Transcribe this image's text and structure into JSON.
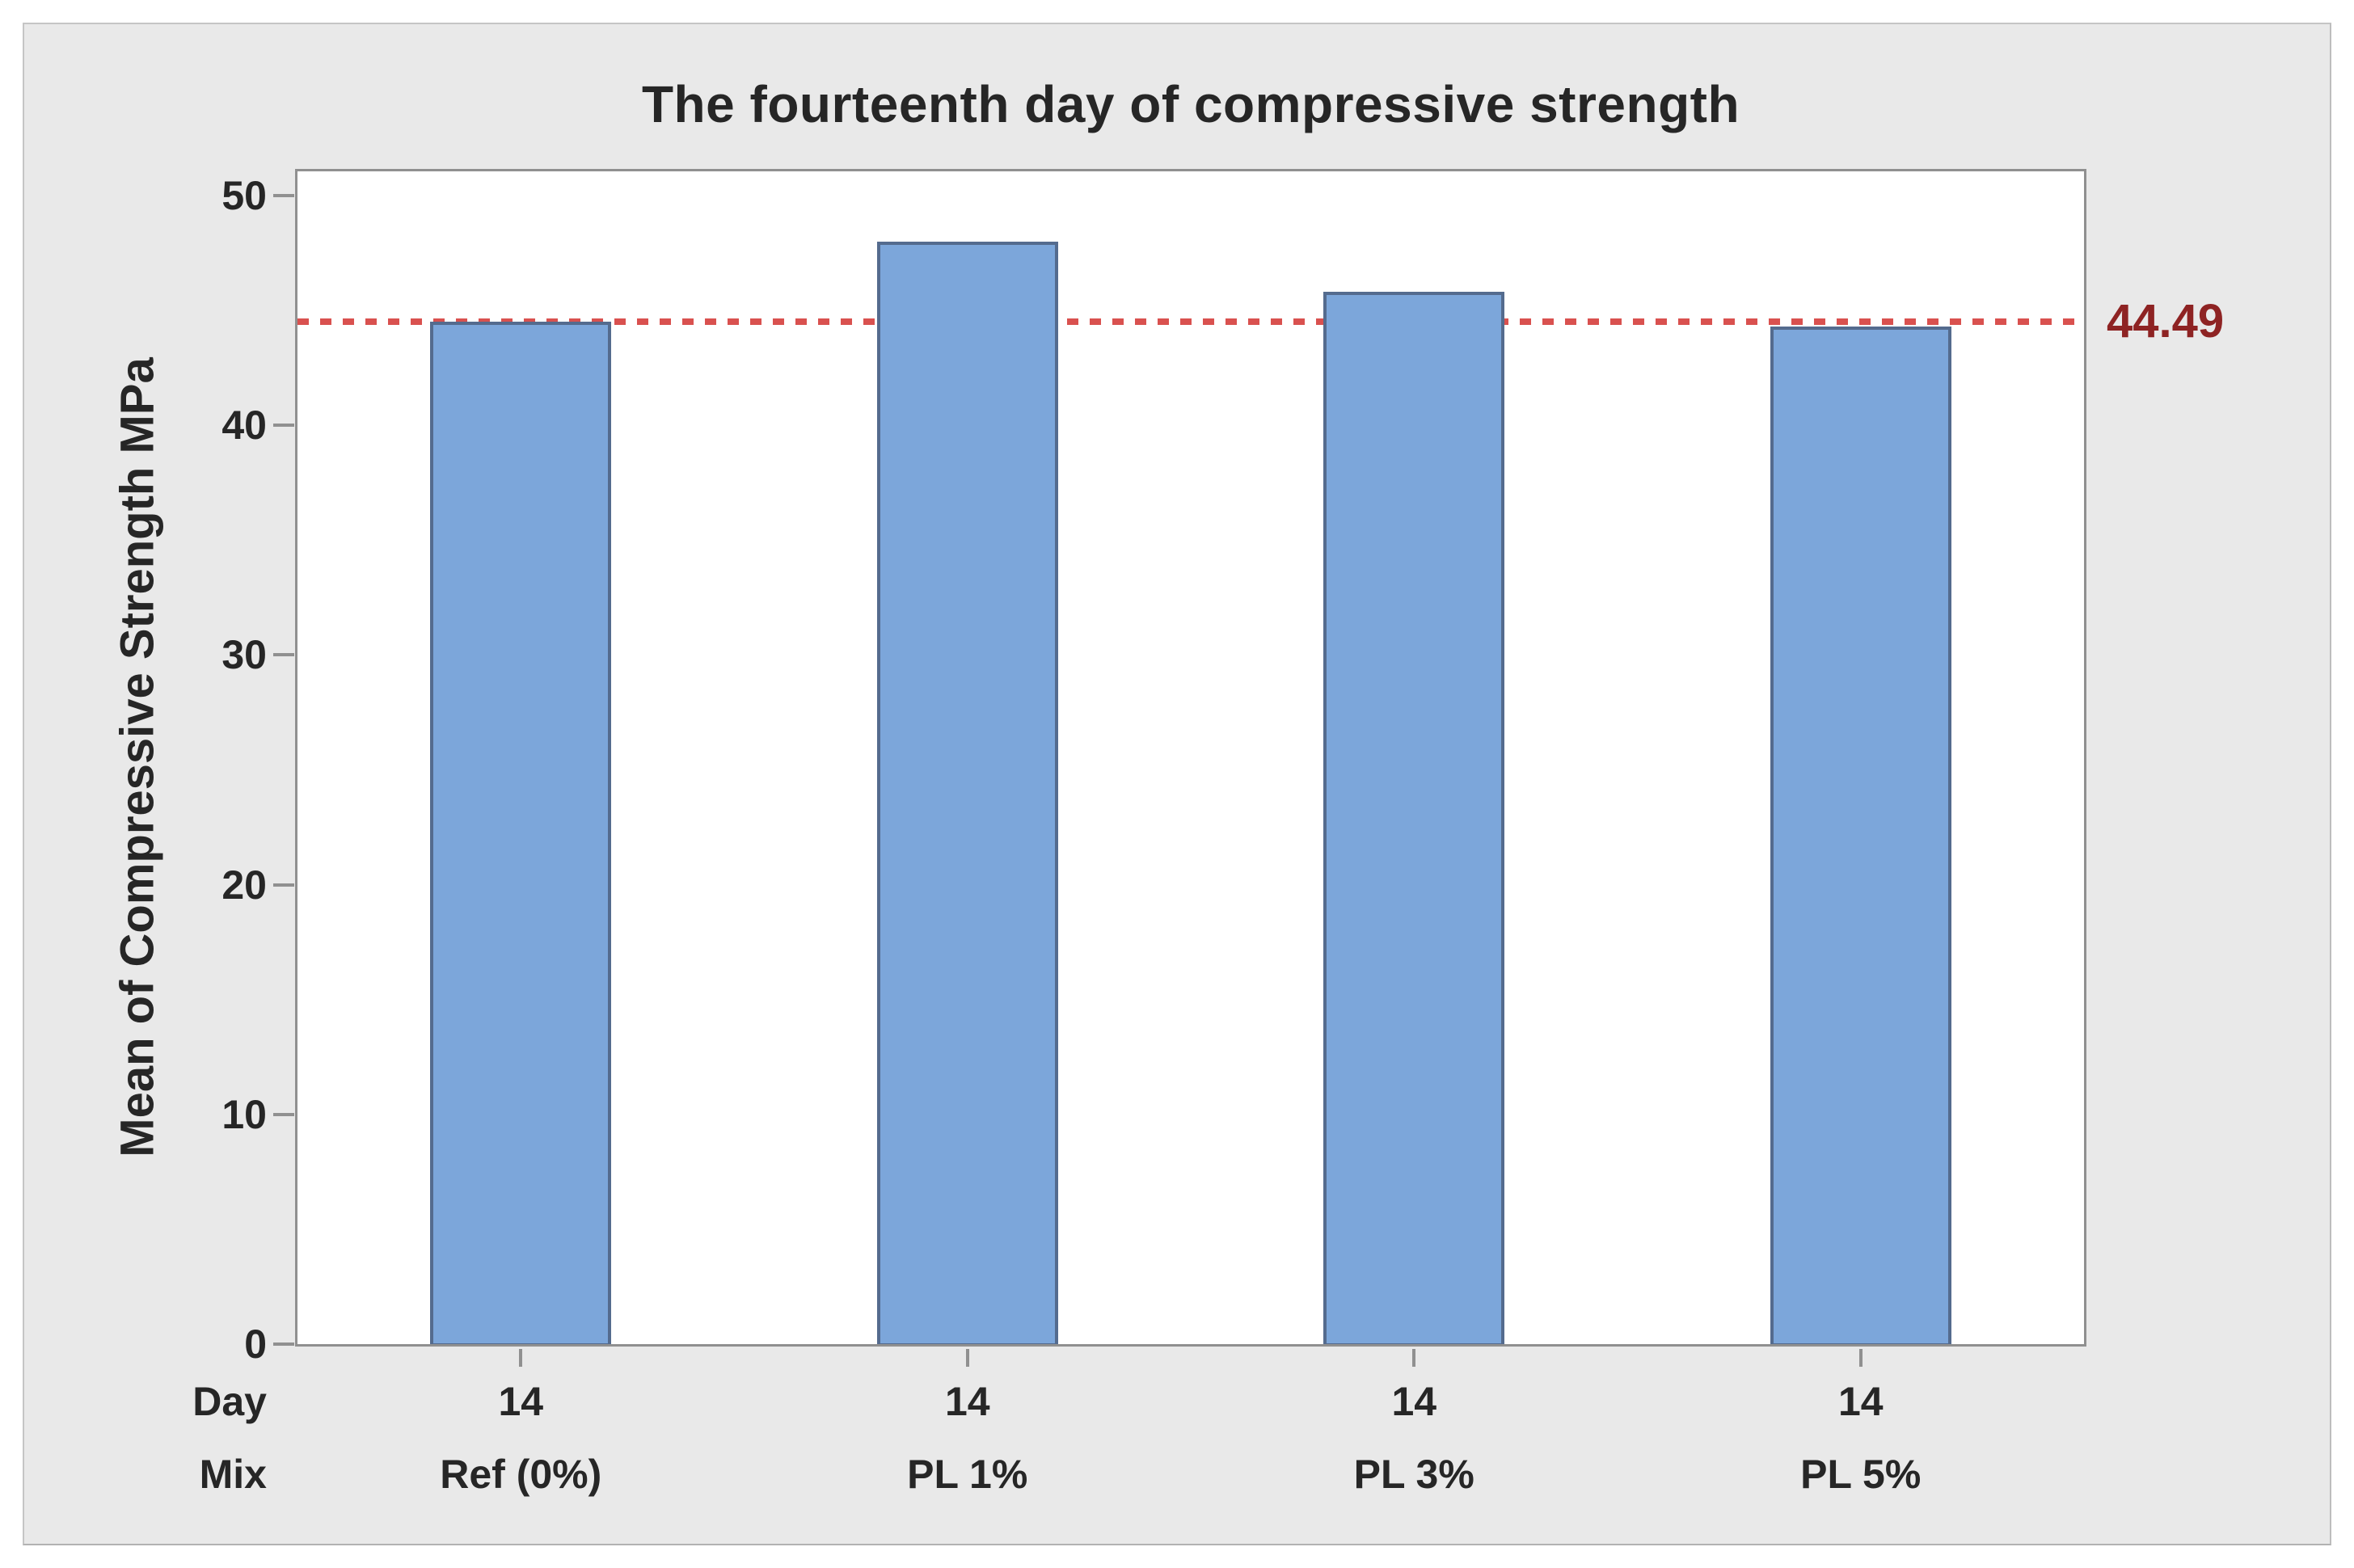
{
  "chart_data": {
    "type": "bar",
    "title": "The fourteenth day of compressive strength",
    "ylabel": "Mean of Compressive Strength MPa",
    "xlabel": "",
    "y_ticks": [
      0,
      10,
      20,
      30,
      40,
      50
    ],
    "ylim": [
      0,
      51.05
    ],
    "grid": false,
    "legend": "none",
    "x_row_labels": {
      "day": "Day",
      "mix": "Mix"
    },
    "categories": [
      {
        "day": "14",
        "mix": "Ref (0%)"
      },
      {
        "day": "14",
        "mix": "PL 1%"
      },
      {
        "day": "14",
        "mix": "PL 3%"
      },
      {
        "day": "14",
        "mix": "PL 5%"
      }
    ],
    "values": [
      44.5,
      48.0,
      45.8,
      44.3
    ],
    "reference_line": {
      "value": 44.49,
      "label": "44.49"
    },
    "colors": {
      "bar_fill": "#7CA6DA",
      "bar_border": "#546B8E",
      "reference_line": "#D9514F",
      "reference_label_text": "#8E2323",
      "panel_background": "#E9E9E9",
      "plot_background": "#FFFFFF",
      "axis_line": "#909090",
      "text": "#262626"
    }
  }
}
